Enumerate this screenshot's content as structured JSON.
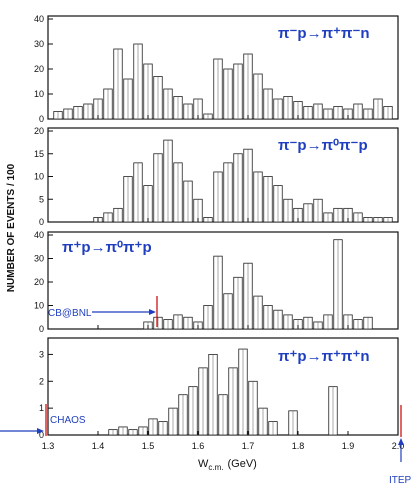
{
  "chart_data": {
    "type": "bar",
    "ylabel": "NUMBER OF EVENTS / 100",
    "xlabel": "W_c.m. (GeV)",
    "xlabel_main": "W",
    "xlabel_sub": "c.m.",
    "xlabel_unit": "(GeV)",
    "xlim": [
      1.3,
      2.0
    ],
    "xticks": [
      1.3,
      1.4,
      1.5,
      1.6,
      1.7,
      1.8,
      1.9,
      2.0
    ],
    "xtick_labels": [
      "1.3",
      "1.4",
      "1.5",
      "1.6",
      "1.7",
      "1.8",
      "1.9",
      "2.0"
    ],
    "panels": [
      {
        "reaction": "π⁻p→π⁺π⁻n",
        "ylim": [
          0,
          40
        ],
        "yticks": [
          0,
          10,
          20,
          30,
          40
        ],
        "x": [
          1.32,
          1.34,
          1.36,
          1.38,
          1.4,
          1.42,
          1.44,
          1.46,
          1.48,
          1.5,
          1.52,
          1.54,
          1.56,
          1.58,
          1.6,
          1.62,
          1.64,
          1.66,
          1.68,
          1.7,
          1.72,
          1.74,
          1.76,
          1.78,
          1.8,
          1.82,
          1.84,
          1.86,
          1.88,
          1.9,
          1.92,
          1.94,
          1.96,
          1.98
        ],
        "values": [
          3,
          4,
          5,
          6,
          8,
          12,
          28,
          16,
          30,
          22,
          17,
          12,
          9,
          6,
          8,
          2,
          24,
          20,
          22,
          26,
          18,
          12,
          8,
          9,
          7,
          5,
          6,
          4,
          5,
          4,
          6,
          4,
          8,
          5
        ]
      },
      {
        "reaction": "π⁻p→π⁰π⁻p",
        "ylim": [
          0,
          20
        ],
        "yticks": [
          0,
          5,
          10,
          15,
          20
        ],
        "x": [
          1.4,
          1.42,
          1.44,
          1.46,
          1.48,
          1.5,
          1.52,
          1.54,
          1.56,
          1.58,
          1.6,
          1.62,
          1.64,
          1.66,
          1.68,
          1.7,
          1.72,
          1.74,
          1.76,
          1.78,
          1.8,
          1.82,
          1.84,
          1.86,
          1.88,
          1.9,
          1.92,
          1.94,
          1.96,
          1.98
        ],
        "values": [
          1,
          2,
          3,
          10,
          13,
          8,
          15,
          18,
          13,
          9,
          5,
          1,
          11,
          13,
          15,
          16,
          11,
          10,
          8,
          5,
          3,
          4,
          5,
          2,
          3,
          3,
          2,
          1,
          1,
          1
        ]
      },
      {
        "reaction": "π⁺p→π⁰π⁺p",
        "ylim": [
          0,
          40
        ],
        "yticks": [
          0,
          10,
          20,
          30,
          40
        ],
        "x": [
          1.5,
          1.52,
          1.54,
          1.56,
          1.58,
          1.6,
          1.62,
          1.64,
          1.66,
          1.68,
          1.7,
          1.72,
          1.74,
          1.76,
          1.78,
          1.8,
          1.82,
          1.84,
          1.86,
          1.88,
          1.9,
          1.92,
          1.94
        ],
        "values": [
          3,
          5,
          4,
          6,
          5,
          3,
          10,
          31,
          15,
          22,
          28,
          14,
          10,
          8,
          6,
          4,
          5,
          3,
          6,
          38,
          6,
          4,
          5
        ]
      },
      {
        "reaction": "π⁺p→π⁺π⁺n",
        "ylim": [
          0,
          3.5
        ],
        "yticks": [
          0,
          1,
          2,
          3
        ],
        "x": [
          1.43,
          1.45,
          1.47,
          1.49,
          1.51,
          1.53,
          1.55,
          1.57,
          1.59,
          1.61,
          1.63,
          1.65,
          1.67,
          1.69,
          1.71,
          1.73,
          1.75,
          1.79,
          1.87
        ],
        "values": [
          0.2,
          0.3,
          0.2,
          0.3,
          0.6,
          0.5,
          1.0,
          1.5,
          1.8,
          2.5,
          3.0,
          1.5,
          2.5,
          3.2,
          2.0,
          1.0,
          0.5,
          0.9,
          1.8
        ]
      }
    ],
    "annotations": [
      "CB@BNL",
      "CHAOS",
      "ITEP"
    ],
    "annotation_ranges": {
      "CB@BNL": [
        1.3,
        1.53
      ],
      "CHAOS": [
        1.3,
        1.31
      ],
      "ITEP": [
        2.0,
        2.01
      ]
    }
  },
  "colors": {
    "reaction_text": "#1f3fbf",
    "annotation_arrow": "#1f3fbf",
    "annotation_marker": "#cc0000",
    "bars": "#222222"
  }
}
